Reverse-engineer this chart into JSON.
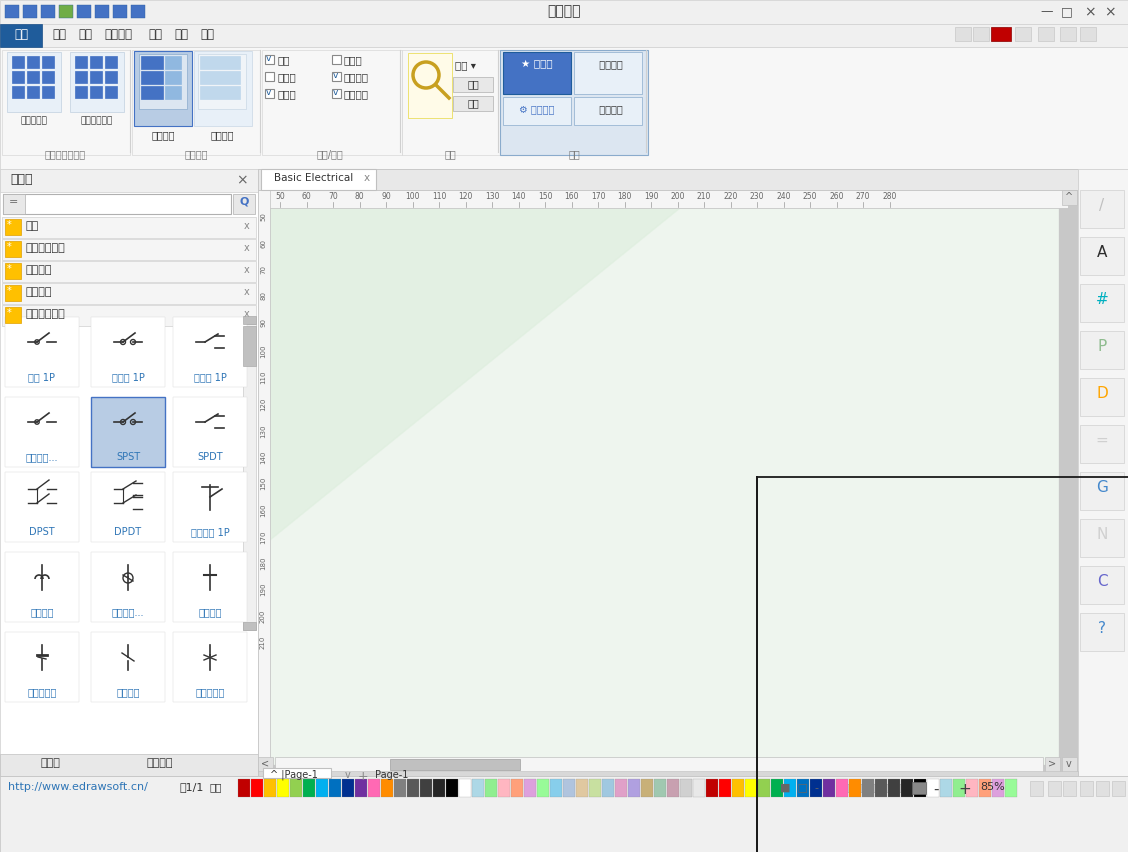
{
  "title": "亿图图示",
  "window_bg": "#f0f0f0",
  "titlebar_bg": "#f0f0f0",
  "menu_bar_bg": "#f0f0f0",
  "ribbon_bg": "#f7f7f7",
  "sidebar_bg": "#ffffff",
  "canvas_bg": "#e8f0e8",
  "border_color": "#c0c0c0",
  "text_blue": "#2e75b6",
  "text_dark": "#1a1a1a",
  "file_btn_bg": "#1f5c9b",
  "ribbon_active_bg": "#4472c4",
  "panel_highlight_bg": "#dce6f1",
  "categories": [
    "背景",
    "集成电路组件",
    "传输路径",
    "限定符号",
    "开关和继电器"
  ],
  "menus": [
    "开始",
    "插入",
    "页面布局",
    "视图",
    "符号",
    "帮助"
  ],
  "symbols": [
    [
      42,
      320,
      "开关 1P",
      false
    ],
    [
      128,
      320,
      "隔离器 1P",
      false
    ],
    [
      210,
      320,
      "断路器 1P",
      false
    ],
    [
      42,
      400,
      "开关切断...",
      false
    ],
    [
      128,
      400,
      "SPST",
      true
    ],
    [
      210,
      400,
      "SPDT",
      false
    ],
    [
      42,
      475,
      "DPST",
      false
    ],
    [
      128,
      475,
      "DPDT",
      false
    ],
    [
      210,
      475,
      "手动开关 1P",
      false
    ],
    [
      42,
      555,
      "热量断路",
      false
    ],
    [
      128,
      555,
      "剩余电流...",
      false
    ],
    [
      210,
      555,
      "闭合触点",
      false
    ],
    [
      42,
      635,
      "断路器触点",
      false
    ],
    [
      128,
      635,
      "双向触点",
      false
    ],
    [
      210,
      635,
      "交闭合触点",
      false
    ]
  ],
  "right_icons": [
    [
      208,
      "#c0c0c0"
    ],
    [
      255,
      "#2d2d2d"
    ],
    [
      302,
      "#00b0c0"
    ],
    [
      349,
      "#8fbc8f"
    ],
    [
      396,
      "#ffa500"
    ],
    [
      443,
      "#d0d0d0"
    ],
    [
      490,
      "#4488cc"
    ],
    [
      537,
      "#d0d0d0"
    ],
    [
      584,
      "#6666cc"
    ],
    [
      631,
      "#4488cc"
    ]
  ],
  "color_palette": [
    "#c00000",
    "#ff0000",
    "#ffc000",
    "#ffff00",
    "#92d050",
    "#00b050",
    "#00b0f0",
    "#0070c0",
    "#003090",
    "#7030a0",
    "#ff69b4",
    "#ff8c00",
    "#808080",
    "#595959",
    "#404040",
    "#262626",
    "#000000",
    "#ffffff",
    "#add8e6",
    "#90ee90",
    "#ffb6c1",
    "#ffa07a",
    "#dda0dd",
    "#98fb98",
    "#87ceeb",
    "#b0c4de",
    "#e0c8a0",
    "#c8e0a0",
    "#a0c8e0",
    "#e0a0c8",
    "#b0a0e0",
    "#c8b078",
    "#a0c8b0",
    "#c8a0b0",
    "#d0d0d0",
    "#e8e8e8",
    "#c00000",
    "#ff0000",
    "#ffc000",
    "#ffff00",
    "#92d050",
    "#00b050",
    "#00b0f0",
    "#0070c0",
    "#003090",
    "#7030a0",
    "#ff69b4",
    "#ff8c00",
    "#808080",
    "#595959",
    "#404040",
    "#262626",
    "#000000",
    "#ffffff",
    "#add8e6",
    "#90ee90",
    "#ffb6c1",
    "#ffa07a",
    "#dda0dd",
    "#98fb98"
  ]
}
